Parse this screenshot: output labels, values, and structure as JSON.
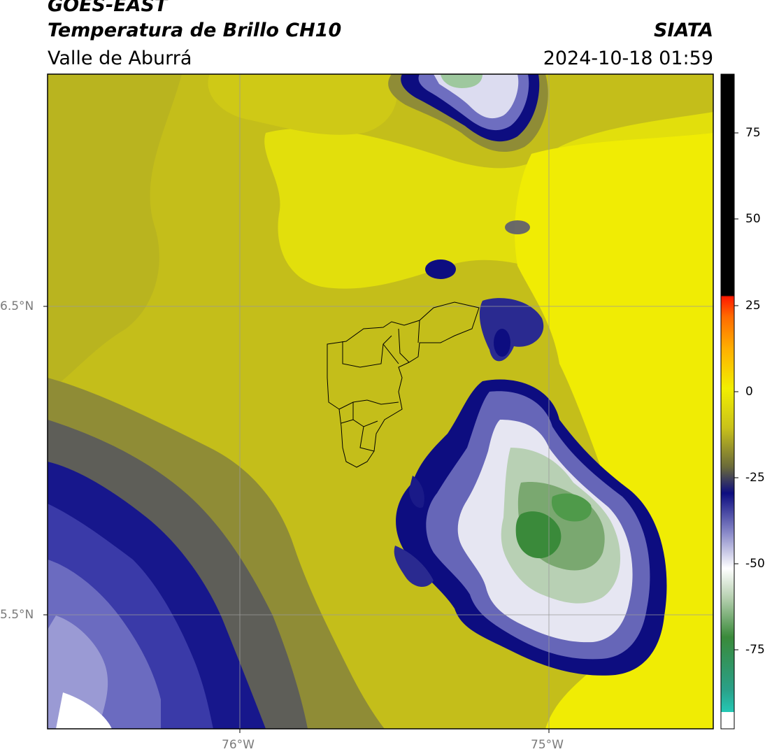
{
  "header": {
    "satellite": "GOES-EAST",
    "product": "Temperatura de Brillo CH10",
    "region": "Valle de Aburrá",
    "agency": "SIATA",
    "datetime": "2024-10-18 01:59"
  },
  "axes": {
    "lat_labels": [
      "6.5°N",
      "5.5°N"
    ],
    "lon_labels": [
      "76°W",
      "75°W"
    ]
  },
  "colorbar": {
    "ticks": [
      "75",
      "50",
      "25",
      "0",
      "-25",
      "-50",
      "-75"
    ],
    "range_celsius": [
      -93,
      92
    ],
    "colors": {
      "warm_black": "#000000",
      "red": "#ff2000",
      "orange": "#ff8a00",
      "yellow": "#f2ef00",
      "olive": "#8c8a30",
      "navy": "#0d0d80",
      "white": "#ffffff",
      "green": "#3a8a3a",
      "cyan": "#20e0d0"
    }
  }
}
